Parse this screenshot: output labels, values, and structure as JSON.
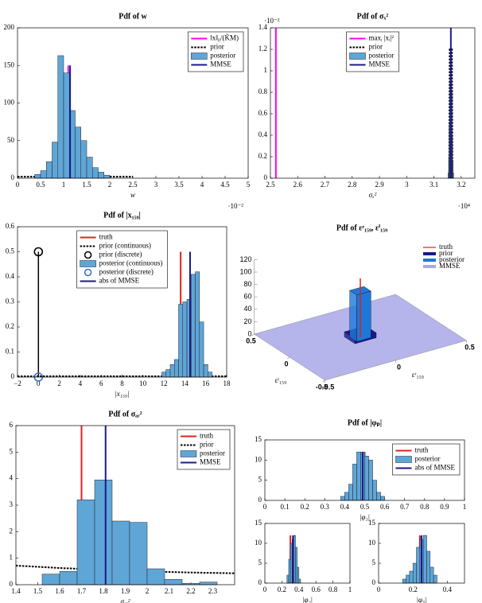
{
  "chart_data": [
    {
      "type": "histogram",
      "title": "Pdf of w",
      "xlabel": "w",
      "x_exponent": "·10⁻²",
      "xlim": [
        0,
        5
      ],
      "ylim": [
        0,
        200
      ],
      "xticks": [
        0,
        0.5,
        1,
        1.5,
        2,
        2.5,
        3,
        3.5,
        4,
        4.5,
        5
      ],
      "yticks": [
        0,
        50,
        100,
        150,
        200
      ],
      "legend": "northeast",
      "series": [
        {
          "name": "‖x‖₀/(K̃M)",
          "color": "#ff00ff",
          "kind": "vline",
          "x": 1.1,
          "value": 150
        },
        {
          "name": "prior",
          "color": "#000000",
          "kind": "line",
          "dash": true,
          "x": [
            0,
            2.5
          ],
          "values": [
            2,
            2
          ]
        },
        {
          "name": "posterior",
          "color": "#5fa6d6",
          "kind": "histogram",
          "bins": [
            0.375,
            0.5,
            0.625,
            0.75,
            0.875,
            1,
            1.125,
            1.25,
            1.375,
            1.5,
            1.625,
            1.75,
            1.875,
            2
          ],
          "counts": [
            5,
            10,
            22,
            48,
            163,
            140,
            90,
            68,
            50,
            28,
            14,
            8,
            4
          ]
        },
        {
          "name": "MMSE",
          "color": "#1a1a8f",
          "kind": "vline",
          "x": 1.14,
          "value": 150
        }
      ]
    },
    {
      "type": "histogram",
      "title": "Pdf of σₓ²",
      "xlabel": "σₓ²",
      "x_exponent": "·10⁴",
      "y_exponent": "·10⁻²",
      "xlim": [
        2.5,
        3.25
      ],
      "ylim": [
        0,
        1.4
      ],
      "xticks": [
        2.5,
        2.6,
        2.7,
        2.8,
        2.9,
        3,
        3.1,
        3.2
      ],
      "yticks": [
        0,
        0.2,
        0.4,
        0.6,
        0.8,
        1,
        1.2,
        1.4
      ],
      "legend": "north",
      "series": [
        {
          "name": "maxᵢ |xᵢ|²",
          "color": "#ff00ff",
          "kind": "vline",
          "x": 2.52,
          "value": 1.4
        },
        {
          "name": "prior",
          "color": "#000000",
          "kind": "line",
          "dash": true,
          "x": [
            3.156,
            3.158,
            3.166,
            3.168
          ],
          "values": [
            0,
            1.2,
            1.2,
            0
          ]
        },
        {
          "name": "posterior",
          "color": "#5fa6d6",
          "kind": "histogram",
          "bins": [
            3.152,
            3.154,
            3.156,
            3.158,
            3.16,
            3.162,
            3.164,
            3.166,
            3.168,
            3.17,
            3.172
          ],
          "counts": [
            0.05,
            0.2,
            0.5,
            0.9,
            1.2,
            1.15,
            0.8,
            0.4,
            0.15,
            0.05
          ]
        },
        {
          "name": "MMSE",
          "color": "#1a1a8f",
          "kind": "vline",
          "x": 3.162,
          "value": 1.4
        }
      ]
    },
    {
      "type": "histogram",
      "title": "Pdf of |x₁₅₉|",
      "xlabel": "|x₁₅₉|",
      "xlim": [
        -2,
        18
      ],
      "ylim": [
        0,
        0.6
      ],
      "xticks": [
        {
          "value": -2,
          "label": "−2"
        },
        0,
        2,
        4,
        6,
        8,
        10,
        12,
        14,
        16,
        18
      ],
      "yticks": [
        0,
        0.1,
        0.2,
        0.3,
        0.4,
        0.5,
        0.6
      ],
      "legend": "north",
      "series": [
        {
          "name": "truth",
          "color": "#e02020",
          "kind": "vline",
          "x": 13.6,
          "value": 0.5
        },
        {
          "name": "prior (continuous)",
          "color": "#000000",
          "kind": "line",
          "dash": true,
          "x": [
            -2,
            18
          ],
          "values": [
            0.003,
            0.003
          ]
        },
        {
          "name": "prior (discrete)",
          "color": "#000000",
          "kind": "stem",
          "x": 0,
          "value": 0.5
        },
        {
          "name": "posterior (continuous)",
          "color": "#5fa6d6",
          "kind": "histogram",
          "bins": [
            11.8,
            12.2,
            12.6,
            13,
            13.4,
            13.8,
            14.2,
            14.6,
            15,
            15.4,
            15.8,
            16.2,
            16.6
          ],
          "counts": [
            0.02,
            0.03,
            0.05,
            0.07,
            0.29,
            0.3,
            0.31,
            0.41,
            0.42,
            0.22,
            0.05,
            0.02
          ]
        },
        {
          "name": "posterior (discrete)",
          "color": "#3a6fc4",
          "kind": "stem",
          "x": 0,
          "value": 0
        },
        {
          "name": "abs of MMSE",
          "color": "#1a1a8f",
          "kind": "vline",
          "x": 14.5,
          "value": 0.5
        }
      ]
    },
    {
      "type": "bar3d",
      "title": "Pdf of εʳ₁₅₉, εⁱ₁₅₉",
      "xlabel": "εʳ₁₅₉",
      "ylabel": "εⁱ₁₅₉",
      "xlim": [
        -0.5,
        0.5
      ],
      "ylim": [
        -0.5,
        0.5
      ],
      "zlim": [
        0,
        120
      ],
      "xticks": [
        -0.5,
        0,
        0.5
      ],
      "yticks": [
        -0.5,
        0,
        0.5
      ],
      "zticks": [
        0,
        20,
        40,
        60,
        80,
        100,
        120
      ],
      "series": [
        {
          "name": "truth",
          "color": "#e02020",
          "kind": "vline",
          "value": 95
        },
        {
          "name": "prior",
          "color": "#1a1a8c",
          "kind": "bar",
          "value": 8
        },
        {
          "name": "posterior",
          "color": "#1e78d8",
          "kind": "bar",
          "value": 75
        },
        {
          "name": "MMSE",
          "color": "#a8a8e8",
          "kind": "plane",
          "value": 0
        }
      ]
    },
    {
      "type": "histogram",
      "title": "Pdf of σₐᵣ²",
      "xlabel": "σₐᵣ²",
      "xlim": [
        1.4,
        2.4
      ],
      "ylim": [
        0,
        6
      ],
      "xticks": [
        1.4,
        1.5,
        1.6,
        1.7,
        1.8,
        1.9,
        2,
        2.1,
        2.2,
        2.3
      ],
      "yticks": [
        0,
        1,
        2,
        3,
        4,
        5,
        6
      ],
      "legend": "northeast",
      "series": [
        {
          "name": "truth",
          "color": "#e02020",
          "kind": "vline",
          "x": 1.7,
          "value": 6
        },
        {
          "name": "prior",
          "color": "#000000",
          "kind": "line",
          "dash": true,
          "x": [
            1.4,
            1.6,
            1.8,
            2,
            2.2,
            2.4
          ],
          "values": [
            0.72,
            0.63,
            0.56,
            0.5,
            0.46,
            0.43
          ]
        },
        {
          "name": "posterior",
          "color": "#5fa6d6",
          "kind": "histogram",
          "bins": [
            1.52,
            1.6,
            1.68,
            1.76,
            1.84,
            1.92,
            2,
            2.08,
            2.16,
            2.24,
            2.32
          ],
          "counts": [
            0.4,
            0.5,
            3.2,
            3.95,
            2.4,
            2.35,
            0.6,
            0.2,
            0.05,
            0.1
          ]
        },
        {
          "name": "MMSE",
          "color": "#1a1a8f",
          "kind": "vline",
          "x": 1.81,
          "value": 6
        }
      ]
    },
    {
      "type": "histogram",
      "title": "Pdf of |φₚ|",
      "xlabel": "|φ₁|",
      "xlim": [
        0,
        1
      ],
      "ylim": [
        0,
        15
      ],
      "xticks": [
        0,
        0.1,
        0.2,
        0.3,
        0.4,
        0.5,
        0.6,
        0.7,
        0.8,
        0.9,
        1
      ],
      "yticks": [
        0,
        5,
        10,
        15
      ],
      "legend": "northeast",
      "series": [
        {
          "name": "truth",
          "color": "#e02020",
          "kind": "vline",
          "x": 0.5,
          "value": 12
        },
        {
          "name": "posterior",
          "color": "#5fa6d6",
          "kind": "histogram",
          "bins": [
            0.38,
            0.4,
            0.42,
            0.44,
            0.46,
            0.48,
            0.5,
            0.52,
            0.54,
            0.56,
            0.58,
            0.6
          ],
          "counts": [
            1,
            2,
            4,
            9,
            12,
            12,
            11,
            10,
            5,
            2,
            1
          ]
        },
        {
          "name": "abs of MMSE",
          "color": "#1a1a8f",
          "kind": "vline",
          "x": 0.49,
          "value": 12
        }
      ]
    },
    {
      "type": "histogram",
      "xlabel": "|φ₂|",
      "xlim": [
        0,
        1
      ],
      "ylim": [
        0,
        15
      ],
      "xticks": [
        0,
        0.2,
        0.4,
        0.6,
        0.8,
        1
      ],
      "yticks": [
        0,
        5,
        10,
        15
      ],
      "series": [
        {
          "name": "truth",
          "color": "#e02020",
          "kind": "vline",
          "x": 0.3,
          "value": 12
        },
        {
          "name": "posterior",
          "color": "#5fa6d6",
          "kind": "histogram",
          "bins": [
            0.26,
            0.28,
            0.3,
            0.32,
            0.34,
            0.36,
            0.38,
            0.4,
            0.42
          ],
          "counts": [
            2,
            6,
            10,
            11,
            12,
            9,
            4,
            1
          ]
        },
        {
          "name": "abs of MMSE",
          "color": "#1a1a8f",
          "kind": "vline",
          "x": 0.33,
          "value": 12
        }
      ]
    },
    {
      "type": "histogram",
      "xlabel": "|φ₃|",
      "xlim": [
        0,
        0.5
      ],
      "ylim": [
        0,
        15
      ],
      "xticks": [
        0,
        0.2,
        0.4
      ],
      "yticks": [
        0,
        5,
        10,
        15
      ],
      "series": [
        {
          "name": "truth",
          "color": "#e02020",
          "kind": "vline",
          "x": 0.24,
          "value": 12
        },
        {
          "name": "posterior",
          "color": "#5fa6d6",
          "kind": "histogram",
          "bins": [
            0.14,
            0.16,
            0.18,
            0.2,
            0.22,
            0.24,
            0.26,
            0.28,
            0.3,
            0.32,
            0.34
          ],
          "counts": [
            1,
            2,
            3,
            5,
            9,
            11,
            12,
            8,
            4,
            2
          ]
        },
        {
          "name": "abs of MMSE",
          "color": "#1a1a8f",
          "kind": "vline",
          "x": 0.25,
          "value": 12
        }
      ]
    }
  ]
}
